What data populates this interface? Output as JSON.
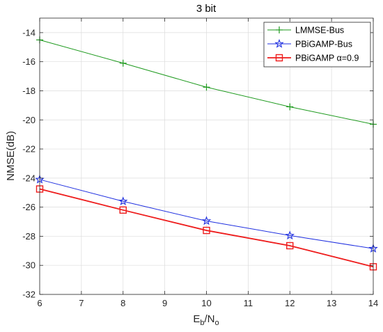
{
  "chart_data": {
    "type": "line",
    "title": "3 bit",
    "xlabel": {
      "base": "E",
      "sub1": "b",
      "mid": "/N",
      "sub2": "o"
    },
    "ylabel": "NMSE(dB)",
    "xlim": [
      6,
      14
    ],
    "ylim": [
      -32,
      -13
    ],
    "xticks": [
      6,
      7,
      8,
      9,
      10,
      11,
      12,
      13,
      14
    ],
    "yticks": [
      -32,
      -30,
      -28,
      -26,
      -24,
      -22,
      -20,
      -18,
      -16,
      -14
    ],
    "grid": true,
    "legend_position": "top-right",
    "x": [
      6,
      8,
      10,
      12,
      14
    ],
    "series": [
      {
        "name": "LMMSE-Bus",
        "color": "#1e9a1e",
        "marker": "plus",
        "values": [
          -14.5,
          -16.1,
          -17.75,
          -19.1,
          -20.3
        ]
      },
      {
        "name": "PBiGAMP-Bus",
        "color": "#1f2fe0",
        "marker": "star",
        "values": [
          -24.1,
          -25.6,
          -26.95,
          -27.95,
          -28.85
        ]
      },
      {
        "name": "PBiGAMP α=0.9",
        "color": "#ee1c1c",
        "marker": "square",
        "values": [
          -24.75,
          -26.2,
          -27.6,
          -28.65,
          -30.1
        ]
      }
    ]
  }
}
